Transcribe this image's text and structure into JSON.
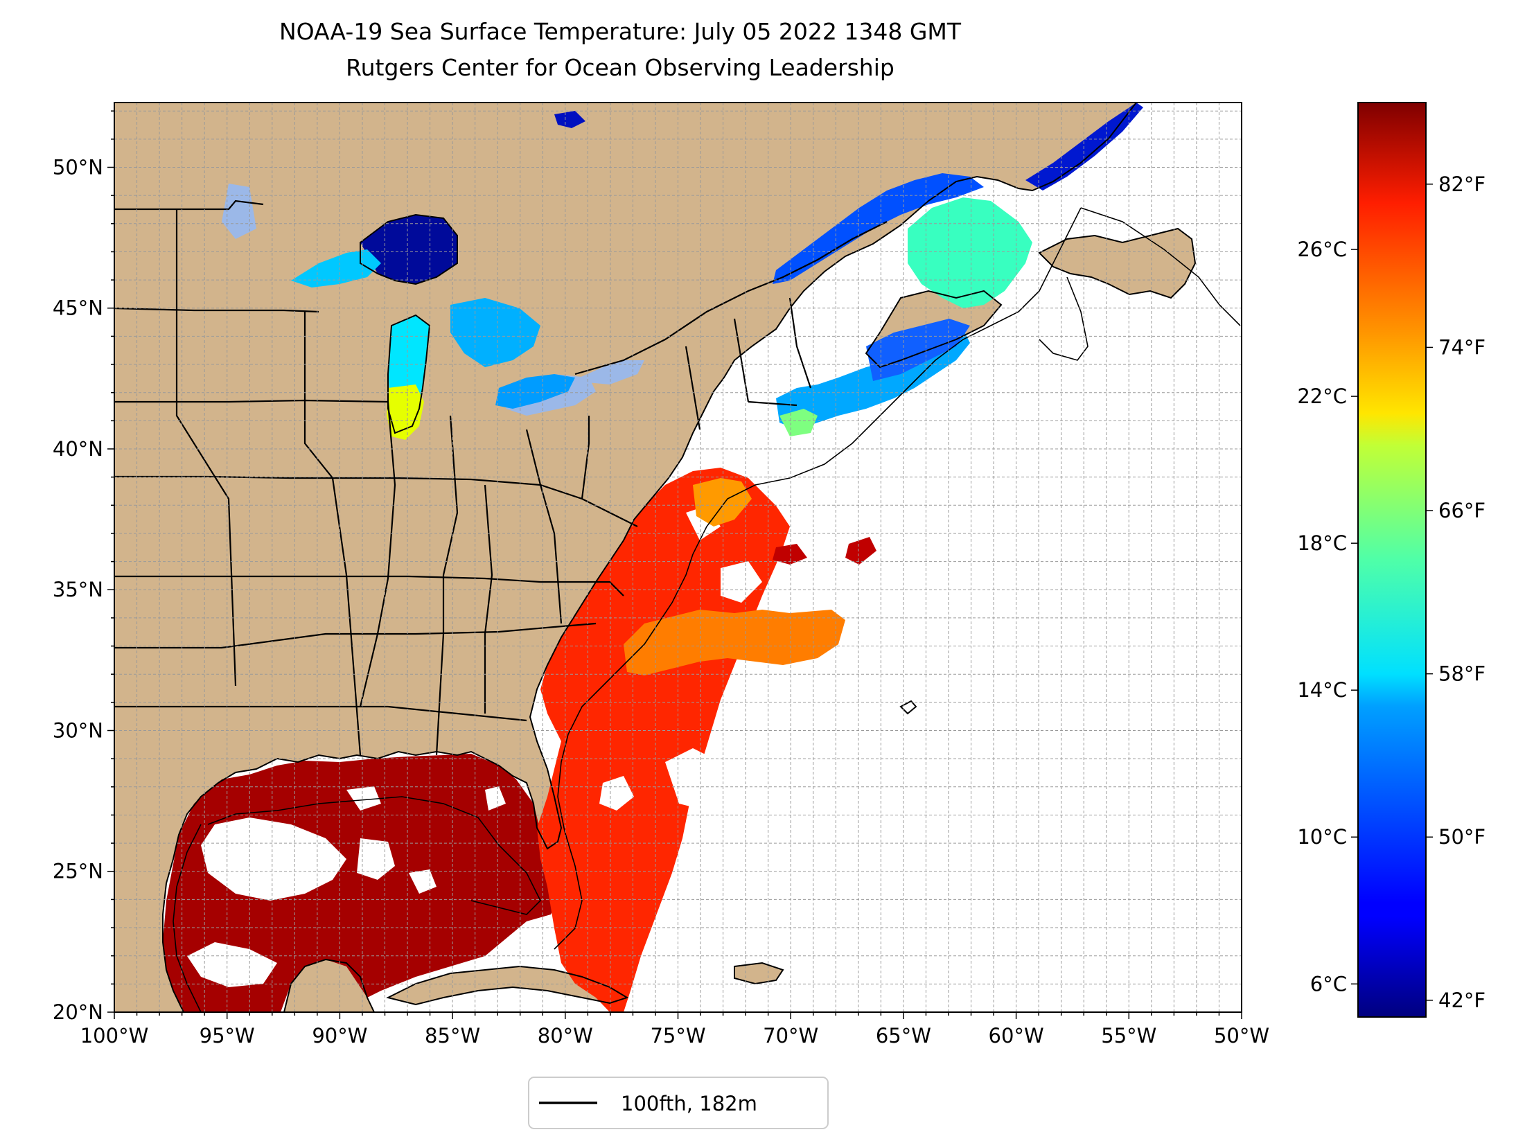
{
  "title": "NOAA-19 Sea Surface Temperature: July 05 2022 1348 GMT",
  "subtitle": "Rutgers Center for Ocean Observing Leadership",
  "map": {
    "lon_range": [
      -100,
      -50
    ],
    "lat_range": [
      20,
      52.3
    ],
    "lon_ticks": [
      "100°W",
      "95°W",
      "90°W",
      "85°W",
      "80°W",
      "75°W",
      "70°W",
      "65°W",
      "60°W",
      "55°W",
      "50°W"
    ],
    "lat_ticks": [
      "20°N",
      "25°N",
      "30°N",
      "35°N",
      "40°N",
      "45°N",
      "50°N"
    ],
    "grid": true,
    "land_color": "#d2b48c",
    "lake_color": "#9bb8e8",
    "ocean_color": "#ffffff",
    "colormap": "jet"
  },
  "legend": {
    "label": "100fth, 182m",
    "placement": "bottom-center"
  },
  "colorbar": {
    "colormap": "jet",
    "celsius_range": [
      5.1,
      30.0
    ],
    "celsius_ticks": [
      "6°C",
      "10°C",
      "14°C",
      "18°C",
      "22°C",
      "26°C"
    ],
    "fahrenheit_ticks": [
      "42°F",
      "50°F",
      "58°F",
      "66°F",
      "74°F",
      "82°F"
    ]
  }
}
